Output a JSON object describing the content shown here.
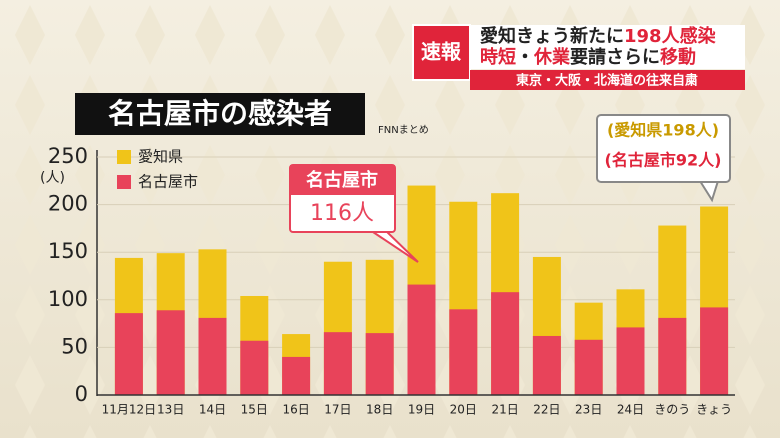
{
  "chart_data": {
    "type": "bar",
    "title": "名古屋市の感染者",
    "source": "FNNまとめ",
    "y_label": "(人)",
    "headline": {
      "tag": "速報",
      "lines": [
        [
          "愛知きょう新たに",
          "198人感染"
        ],
        [
          "時短",
          "・",
          "休業",
          "要請さらに",
          "移動"
        ]
      ],
      "sub": "東京・大阪・北海道の往来自粛"
    },
    "categories": [
      "11月12日",
      "13日",
      "14日",
      "15日",
      "16日",
      "17日",
      "18日",
      "19日",
      "20日",
      "21日",
      "22日",
      "23日",
      "24日",
      "きのう",
      "きょう"
    ],
    "series": [
      {
        "name": "愛知県",
        "color": "#f0c419",
        "values": [
          144,
          149,
          153,
          104,
          64,
          140,
          142,
          220,
          203,
          212,
          145,
          97,
          111,
          178,
          198
        ]
      },
      {
        "name": "名古屋市",
        "color": "#e8435a",
        "values": [
          86,
          89,
          81,
          57,
          40,
          66,
          65,
          116,
          90,
          108,
          62,
          58,
          71,
          81,
          92
        ]
      }
    ],
    "annotations": [
      {
        "lines": [
          "名古屋市",
          "116人"
        ]
      },
      {
        "lines": [
          "(愛知県198人)",
          "(名古屋市92人)"
        ]
      }
    ],
    "ylim": [
      0,
      250
    ],
    "yticks": [
      0,
      50,
      100,
      150,
      200,
      250
    ],
    "grid": true,
    "overlap": true
  }
}
